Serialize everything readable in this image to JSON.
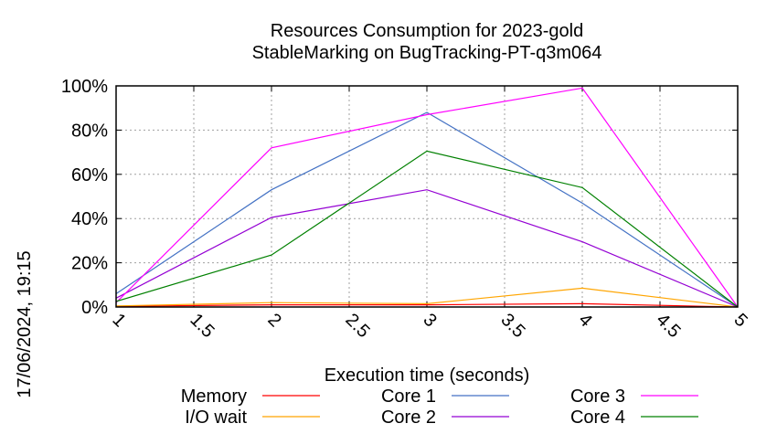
{
  "chart_data": {
    "type": "line",
    "title": "Resources Consumption for 2023-gold",
    "subtitle": "StableMarking on BugTracking-PT-q3m064",
    "xlabel": "Execution time (seconds)",
    "ylabel": "",
    "xlim": [
      1,
      5
    ],
    "ylim": [
      0,
      100
    ],
    "x_ticks": [
      "1",
      "1.5",
      "2",
      "2.5",
      "3",
      "3.5",
      "4",
      "4.5",
      "5"
    ],
    "y_ticks": [
      "0%",
      "20%",
      "40%",
      "60%",
      "80%",
      "100%"
    ],
    "grid": true,
    "legend_position": "bottom",
    "series": [
      {
        "name": "Memory",
        "color": "#ff0000",
        "x": [
          1,
          2,
          3,
          4,
          5
        ],
        "y": [
          0.3,
          1.0,
          1.0,
          1.5,
          0
        ]
      },
      {
        "name": "I/O wait",
        "color": "#ffa500",
        "x": [
          1,
          2,
          3,
          4,
          5
        ],
        "y": [
          0.5,
          2.0,
          1.5,
          8.5,
          0
        ]
      },
      {
        "name": "Core 1",
        "color": "#4472c4",
        "x": [
          1,
          2,
          3,
          4,
          5
        ],
        "y": [
          6,
          53,
          88,
          47,
          0
        ]
      },
      {
        "name": "Core 2",
        "color": "#9400d3",
        "x": [
          1,
          2,
          3,
          4,
          5
        ],
        "y": [
          4,
          40.5,
          53,
          29.5,
          0
        ]
      },
      {
        "name": "Core 3",
        "color": "#ff00ff",
        "x": [
          1,
          2,
          3,
          4,
          5
        ],
        "y": [
          2,
          72,
          87,
          99,
          0
        ]
      },
      {
        "name": "Core 4",
        "color": "#008000",
        "x": [
          1,
          2,
          3,
          4,
          5
        ],
        "y": [
          2.5,
          23.5,
          70.5,
          54,
          0
        ]
      }
    ]
  },
  "timestamp": "17/06/2024, 19:15"
}
